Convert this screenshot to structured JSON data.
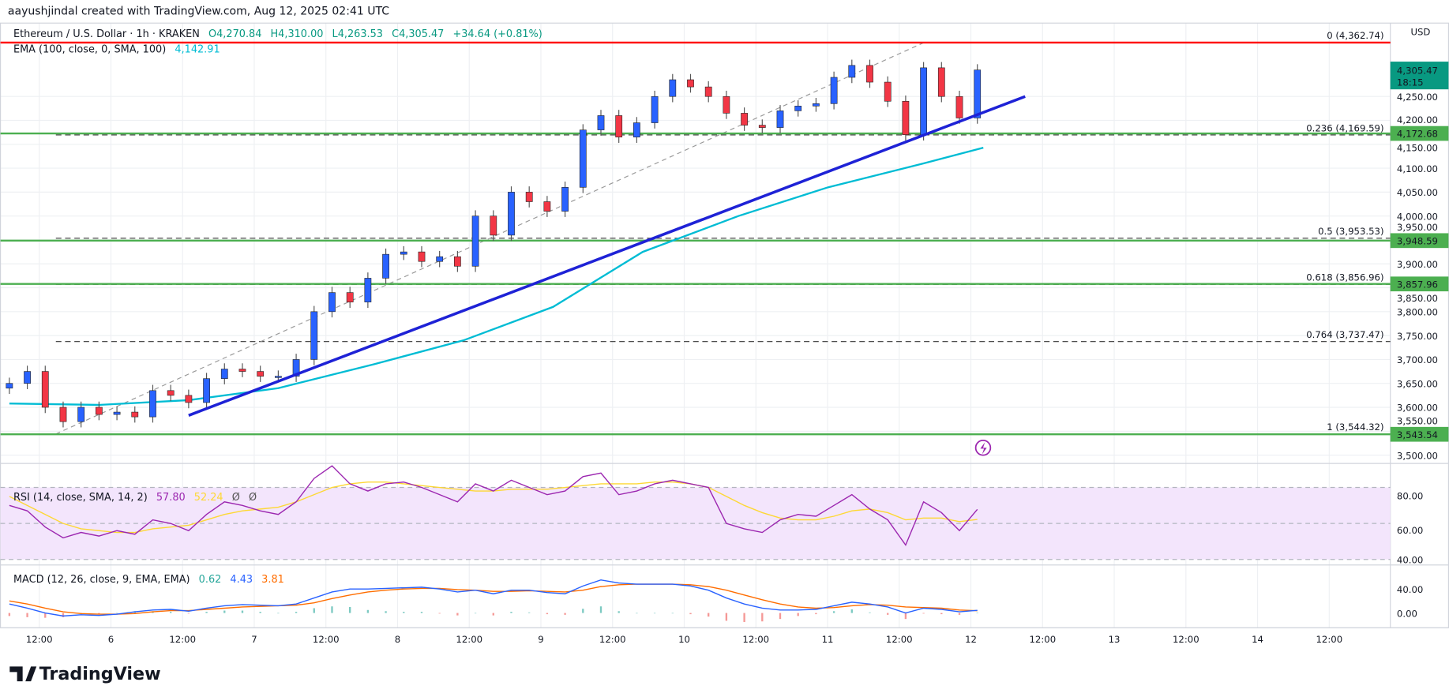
{
  "header": {
    "credit": "aayushjindal created with TradingView.com, Aug 12, 2025 02:41 UTC"
  },
  "legend": {
    "symbol": "Ethereum / U.S. Dollar · 1h · KRAKEN",
    "open": "O4,270.84",
    "high": "H4,310.00",
    "low": "L4,263.53",
    "close": "C4,305.47",
    "change": "+34.64 (+0.81%)",
    "ema_label": "EMA (100, close, 0, SMA, 100)",
    "ema_value": "4,142.91"
  },
  "rsi_legend": {
    "label": "RSI (14, close, SMA, 14, 2)",
    "rsi": "57.80",
    "sma": "52.24",
    "extra1": "Ø",
    "extra2": "Ø"
  },
  "macd_legend": {
    "label": "MACD (12, 26, close, 9, EMA, EMA)",
    "hist": "0.62",
    "macd": "4.43",
    "signal": "3.81"
  },
  "price_axis": {
    "currency": "USD",
    "ticks": [
      "4,250.00",
      "4,200.00",
      "4,150.00",
      "4,100.00",
      "4,050.00",
      "4,000.00",
      "3,950.00",
      "3,900.00",
      "3,850.00",
      "3,800.00",
      "3,750.00",
      "3,700.00",
      "3,650.00",
      "3,600.00",
      "3,550.00",
      "3,500.00"
    ],
    "tick_values": [
      4250,
      4200,
      4150,
      4100,
      4050,
      4000,
      3950,
      3900,
      3850,
      3800,
      3750,
      3700,
      3650,
      3600,
      3550,
      3500
    ],
    "last_price": "4,305.47",
    "countdown": "18:15",
    "level_labels": [
      {
        "value": 4172.68,
        "text": "4,172.68"
      },
      {
        "value": 3948.59,
        "text": "3,948.59"
      },
      {
        "value": 3857.96,
        "text": "3,857.96"
      },
      {
        "value": 3543.54,
        "text": "3,543.54"
      }
    ]
  },
  "rsi_axis": {
    "ticks": [
      "80.00",
      "60.00",
      "40.00"
    ]
  },
  "macd_axis": {
    "ticks": [
      "40.00",
      "0.00"
    ]
  },
  "time_axis": {
    "ticks": [
      "12:00",
      "6",
      "12:00",
      "7",
      "12:00",
      "8",
      "12:00",
      "9",
      "12:00",
      "10",
      "12:00",
      "11",
      "12:00",
      "12",
      "12:00",
      "13",
      "12:00",
      "14",
      "12:00"
    ]
  },
  "logo": "TradingView",
  "colors": {
    "up": "#2962ff",
    "down": "#f23645",
    "ema": "#00bcd4",
    "trendline": "#1e22d6",
    "support": "#4caf50",
    "resistance": "#ff0000",
    "rsi": "#9c27b0",
    "rsi_sma": "#fdd835",
    "macd": "#2962ff",
    "signal": "#ff6d00",
    "last_price_bg": "#089981"
  },
  "chart_data": [
    {
      "type": "candlestick",
      "title": "Ethereum / U.S. Dollar · 1h · KRAKEN",
      "start": "Aug 5 07:00",
      "interval": "3h",
      "closes": [
        3650,
        3675,
        3600,
        3570,
        3600,
        3585,
        3590,
        3580,
        3635,
        3625,
        3610,
        3660,
        3680,
        3675,
        3665,
        3665,
        3700,
        3800,
        3840,
        3820,
        3870,
        3920,
        3925,
        3905,
        3915,
        3895,
        4000,
        3960,
        4050,
        4030,
        4010,
        4060,
        4180,
        4210,
        4165,
        4195,
        4250,
        4285,
        4270,
        4250,
        4215,
        4190,
        4185,
        4220,
        4230,
        4235,
        4290,
        4315,
        4280,
        4240,
        4170,
        4310,
        4250,
        4205,
        4305.47
      ],
      "ylim": [
        3490,
        4400
      ],
      "ema100": [
        [
          "Aug 5 07:00",
          3608
        ],
        [
          "Aug 5 22:00",
          3605
        ],
        [
          "Aug 6 13:00",
          3615
        ],
        [
          "Aug 7 04:00",
          3640
        ],
        [
          "Aug 7 20:00",
          3690
        ],
        [
          "Aug 8 11:00",
          3740
        ],
        [
          "Aug 9 02:00",
          3810
        ],
        [
          "Aug 9 17:00",
          3925
        ],
        [
          "Aug 10 09:00",
          4000
        ],
        [
          "Aug 11 00:00",
          4060
        ],
        [
          "Aug 11 16:00",
          4110
        ],
        [
          "Aug 12 02:00",
          4142.91
        ]
      ],
      "trendline": [
        [
          "Aug 6 13:00",
          3583
        ],
        [
          "Aug 12 09:00",
          4250
        ]
      ],
      "horizontal_levels": [
        {
          "value": 4362.74,
          "color": "red"
        },
        {
          "value": 4172.68,
          "color": "green"
        },
        {
          "value": 3948.59,
          "color": "green"
        },
        {
          "value": 3857.96,
          "color": "green"
        },
        {
          "value": 3543.54,
          "color": "green"
        }
      ],
      "fibonacci": [
        {
          "ratio": "0",
          "value": 4362.74,
          "label": "0 (4,362.74)"
        },
        {
          "ratio": "0.236",
          "value": 4169.59,
          "label": "0.236 (4,169.59)"
        },
        {
          "ratio": "0.5",
          "value": 3953.53,
          "label": "0.5 (3,953.53)"
        },
        {
          "ratio": "0.618",
          "value": 3856.96,
          "label": "0.618 (3,856.96)"
        },
        {
          "ratio": "0.764",
          "value": 3737.47,
          "label": "0.764 (3,737.47)"
        },
        {
          "ratio": "1",
          "value": 3544.32,
          "label": "1 (3,544.32)"
        }
      ]
    },
    {
      "type": "line",
      "title": "RSI (14, close, SMA, 14, 2)",
      "ylim": [
        25,
        90
      ],
      "band": [
        30,
        70
      ],
      "rsi": [
        60,
        57,
        48,
        42,
        45,
        43,
        46,
        44,
        52,
        50,
        46,
        55,
        62,
        60,
        57,
        55,
        62,
        75,
        82,
        72,
        68,
        72,
        73,
        70,
        66,
        62,
        72,
        68,
        74,
        70,
        66,
        68,
        76,
        78,
        66,
        68,
        72,
        74,
        72,
        70,
        50,
        47,
        45,
        52,
        55,
        54,
        60,
        66,
        58,
        52,
        38,
        62,
        56,
        46,
        57.8
      ],
      "sma": [
        65,
        60,
        55,
        50,
        47,
        46,
        45,
        45,
        47,
        48,
        49,
        52,
        55,
        57,
        58,
        59,
        62,
        66,
        70,
        72,
        73,
        73,
        72,
        71,
        70,
        69,
        68,
        68,
        69,
        69,
        69,
        70,
        71,
        72,
        72,
        72,
        73,
        73,
        72,
        70,
        65,
        60,
        56,
        53,
        52,
        52,
        54,
        57,
        58,
        56,
        52,
        53,
        53,
        51,
        52.24
      ]
    },
    {
      "type": "line",
      "title": "MACD (12, 26, close, 9, EMA, EMA)",
      "ylim": [
        -20,
        60
      ],
      "macd": [
        15,
        8,
        0,
        -5,
        -3,
        -4,
        -2,
        2,
        5,
        6,
        3,
        8,
        12,
        14,
        13,
        12,
        15,
        25,
        35,
        40,
        40,
        41,
        42,
        43,
        40,
        35,
        38,
        32,
        38,
        38,
        34,
        32,
        45,
        55,
        50,
        48,
        48,
        48,
        45,
        38,
        25,
        15,
        8,
        5,
        5,
        6,
        12,
        18,
        15,
        10,
        0,
        8,
        6,
        2,
        4.43
      ],
      "signal": [
        20,
        15,
        8,
        2,
        -1,
        -2,
        -2,
        -1,
        2,
        4,
        4,
        6,
        8,
        10,
        11,
        12,
        13,
        17,
        24,
        30,
        35,
        38,
        40,
        41,
        41,
        39,
        38,
        36,
        36,
        37,
        36,
        35,
        38,
        44,
        47,
        48,
        48,
        48,
        47,
        44,
        38,
        30,
        22,
        15,
        10,
        8,
        9,
        12,
        14,
        13,
        10,
        9,
        8,
        5,
        3.81
      ]
    }
  ]
}
